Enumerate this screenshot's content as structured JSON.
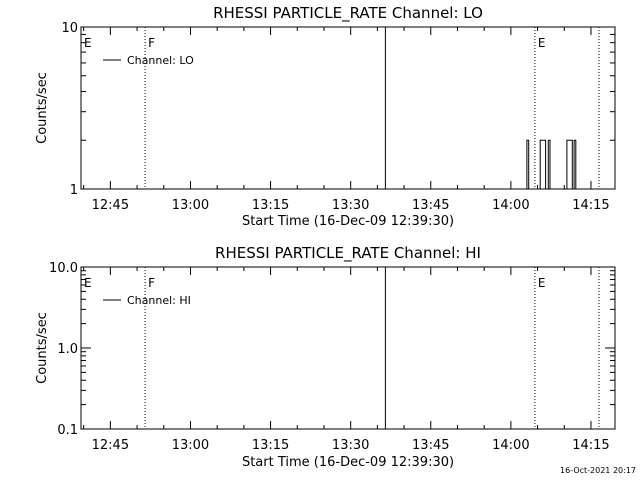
{
  "chart_data": [
    {
      "type": "line",
      "title": "RHESSI PARTICLE_RATE Channel: LO",
      "xlabel": "Start Time (16-Dec-09 12:39:30)",
      "ylabel": "Counts/sec",
      "x_ticks": [
        "12:45",
        "13:00",
        "13:15",
        "13:30",
        "13:45",
        "14:00",
        "14:15"
      ],
      "x_range": [
        "12:39:30",
        "14:19:30"
      ],
      "y_scale": "log",
      "y_ticks": [
        "1",
        "10"
      ],
      "ylim": [
        1,
        10
      ],
      "grid": false,
      "legend_position": "top-left",
      "series": [
        {
          "name": "Channel: LO",
          "points": [
            [
              "14:03:00",
              1
            ],
            [
              "14:03:00",
              2
            ],
            [
              "14:03:20",
              2
            ],
            [
              "14:03:20",
              1
            ],
            [
              "14:05:30",
              1
            ],
            [
              "14:05:30",
              2
            ],
            [
              "14:06:30",
              2
            ],
            [
              "14:06:30",
              1
            ],
            [
              "14:07:00",
              1
            ],
            [
              "14:07:00",
              2
            ],
            [
              "14:07:20",
              2
            ],
            [
              "14:07:20",
              1
            ],
            [
              "14:10:30",
              1
            ],
            [
              "14:10:30",
              2
            ],
            [
              "14:11:30",
              2
            ],
            [
              "14:11:30",
              1
            ],
            [
              "14:11:50",
              1
            ],
            [
              "14:11:50",
              2
            ],
            [
              "14:12:10",
              2
            ],
            [
              "14:12:10",
              1
            ]
          ]
        }
      ],
      "markers": [
        {
          "time": "12:39:30",
          "label": "E",
          "style": "dotted"
        },
        {
          "time": "12:51:30",
          "label": "F",
          "style": "dotted"
        },
        {
          "time": "13:36:30",
          "label": "",
          "style": "solid"
        },
        {
          "time": "14:04:30",
          "label": "E",
          "style": "dotted"
        },
        {
          "time": "14:16:30",
          "label": "",
          "style": "dotted"
        }
      ]
    },
    {
      "type": "line",
      "title": "RHESSI PARTICLE_RATE Channel: HI",
      "xlabel": "Start Time (16-Dec-09 12:39:30)",
      "ylabel": "Counts/sec",
      "x_ticks": [
        "12:45",
        "13:00",
        "13:15",
        "13:30",
        "13:45",
        "14:00",
        "14:15"
      ],
      "x_range": [
        "12:39:30",
        "14:19:30"
      ],
      "y_scale": "log",
      "y_ticks": [
        "0.1",
        "1.0",
        "10.0"
      ],
      "ylim": [
        0.1,
        10
      ],
      "grid": false,
      "legend_position": "top-left",
      "series": [
        {
          "name": "Channel: HI",
          "points": []
        }
      ],
      "markers": [
        {
          "time": "12:39:30",
          "label": "E",
          "style": "dotted"
        },
        {
          "time": "12:51:30",
          "label": "F",
          "style": "dotted"
        },
        {
          "time": "13:36:30",
          "label": "",
          "style": "solid"
        },
        {
          "time": "14:04:30",
          "label": "E",
          "style": "dotted"
        },
        {
          "time": "14:16:30",
          "label": "",
          "style": "dotted"
        }
      ]
    }
  ],
  "footer": {
    "timestamp": "16-Oct-2021 20:17"
  },
  "colors": {
    "background": "#ffffff",
    "foreground": "#000000"
  }
}
